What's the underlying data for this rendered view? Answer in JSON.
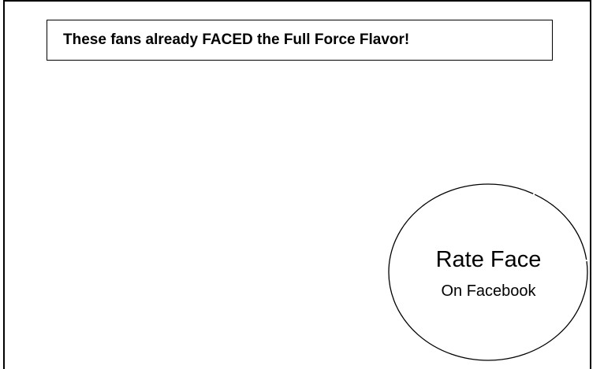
{
  "headline": {
    "text": "These fans already FACED the Full Force Flavor!"
  },
  "rate_badge": {
    "title": "Rate Face",
    "subtitle": "On Facebook"
  },
  "colors": {
    "border": "#000000",
    "background": "#ffffff",
    "text": "#000000"
  }
}
